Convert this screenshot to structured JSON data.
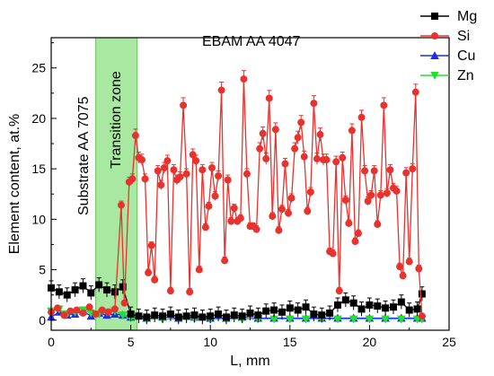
{
  "chart_data": {
    "type": "line",
    "title": "EBAM AA 4047",
    "xlabel": "L, mm",
    "ylabel": "Element content, at.%",
    "xlim": [
      0,
      25
    ],
    "ylim": [
      -1,
      28
    ],
    "xticks": [
      "0",
      "5",
      "10",
      "15",
      "20",
      "25"
    ],
    "yticks": [
      "0",
      "5",
      "10",
      "15",
      "20",
      "25"
    ],
    "grid": false,
    "legend_position": "top-right",
    "annotations": {
      "substrate": "Substrate AA 7075",
      "transition": "Transition zone"
    },
    "transition_zone": {
      "x_start": 2.8,
      "x_end": 5.4,
      "color": "#a8e8a0"
    },
    "series": [
      {
        "name": "Mg",
        "color": "#000000",
        "marker": "square",
        "x": [
          0.0,
          0.5,
          1.0,
          1.5,
          2.0,
          2.5,
          3.0,
          3.5,
          4.0,
          4.5,
          5.0,
          5.5,
          6.0,
          6.5,
          7.0,
          7.5,
          8.0,
          8.5,
          9.0,
          9.5,
          10.0,
          10.5,
          11.0,
          11.5,
          12.0,
          12.5,
          13.0,
          13.5,
          14.0,
          14.5,
          15.0,
          15.5,
          16.0,
          16.5,
          17.0,
          17.5,
          18.0,
          18.5,
          19.0,
          19.5,
          20.0,
          20.5,
          21.0,
          21.5,
          22.0,
          22.5,
          23.0,
          23.3
        ],
        "y": [
          3.2,
          2.8,
          2.5,
          3.0,
          3.4,
          2.7,
          3.5,
          3.0,
          2.8,
          3.3,
          0.6,
          0.4,
          0.3,
          0.5,
          0.4,
          0.6,
          0.3,
          0.4,
          0.5,
          0.3,
          0.4,
          0.6,
          0.3,
          0.5,
          0.4,
          0.7,
          0.5,
          0.9,
          1.0,
          0.8,
          1.2,
          1.0,
          1.3,
          0.6,
          0.5,
          0.7,
          1.5,
          2.0,
          1.7,
          1.1,
          1.5,
          1.4,
          1.2,
          1.3,
          1.8,
          1.0,
          1.1,
          2.6
        ]
      },
      {
        "name": "Si",
        "color": "#e8322e",
        "marker": "circle",
        "x": [
          0.0,
          0.4,
          0.8,
          1.2,
          1.6,
          2.0,
          2.4,
          2.8,
          3.2,
          3.6,
          4.0,
          4.4,
          4.6,
          4.9,
          5.1,
          5.3,
          5.5,
          5.7,
          5.9,
          6.1,
          6.3,
          6.5,
          6.7,
          6.9,
          7.1,
          7.3,
          7.5,
          7.7,
          7.9,
          8.1,
          8.3,
          8.5,
          8.7,
          8.9,
          9.1,
          9.3,
          9.5,
          9.7,
          9.9,
          10.1,
          10.3,
          10.5,
          10.7,
          10.9,
          11.1,
          11.3,
          11.5,
          11.7,
          11.9,
          12.1,
          12.3,
          12.5,
          12.7,
          12.9,
          13.1,
          13.3,
          13.5,
          13.7,
          13.9,
          14.1,
          14.3,
          14.5,
          14.7,
          14.9,
          15.1,
          15.3,
          15.5,
          15.7,
          15.9,
          16.1,
          16.3,
          16.5,
          16.7,
          16.9,
          17.1,
          17.3,
          17.5,
          17.7,
          17.9,
          18.1,
          18.3,
          18.5,
          18.7,
          18.9,
          19.1,
          19.3,
          19.5,
          19.7,
          19.9,
          20.1,
          20.3,
          20.5,
          20.7,
          20.9,
          21.1,
          21.3,
          21.5,
          21.7,
          21.9,
          22.1,
          22.3,
          22.5,
          22.7,
          22.9,
          23.1,
          23.3
        ],
        "y": [
          0.8,
          1.2,
          0.5,
          0.9,
          1.0,
          0.7,
          1.3,
          0.6,
          1.0,
          0.8,
          1.1,
          11.4,
          1.7,
          13.7,
          14.0,
          18.3,
          16.1,
          15.9,
          14.0,
          4.7,
          7.4,
          4.0,
          14.8,
          13.4,
          15.1,
          15.8,
          2.9,
          14.9,
          13.9,
          14.2,
          21.3,
          14.5,
          2.8,
          16.4,
          15.8,
          5.0,
          14.9,
          9.2,
          11.3,
          15.1,
          12.3,
          14.3,
          22.8,
          5.9,
          13.9,
          9.8,
          11.1,
          9.8,
          10.1,
          23.9,
          14.5,
          9.3,
          9.3,
          9.0,
          17.0,
          18.5,
          16.0,
          22.0,
          10.3,
          18.9,
          8.9,
          11.0,
          15.5,
          10.6,
          12.1,
          17.0,
          18.1,
          19.6,
          16.2,
          10.8,
          12.7,
          21.5,
          16.0,
          18.4,
          15.9,
          15.9,
          6.8,
          6.6,
          15.7,
          2.9,
          16.1,
          11.9,
          9.6,
          18.8,
          7.8,
          8.6,
          20.1,
          14.8,
          11.8,
          12.4,
          14.8,
          9.5,
          12.4,
          21.3,
          12.6,
          14.9,
          13.1,
          12.8,
          5.3,
          4.4,
          14.6,
          5.8,
          15.0,
          22.6,
          5.1,
          0.4
        ]
      },
      {
        "name": "Cu",
        "color": "#1f2ee0",
        "marker": "triangle-up",
        "x": [
          0.0,
          0.5,
          1.0,
          1.5,
          2.0,
          2.5,
          3.0,
          3.5,
          4.0,
          4.5,
          5.0,
          6.0,
          7.0,
          8.0,
          9.0,
          10.0,
          11.0,
          12.0,
          13.0,
          14.0,
          15.0,
          16.0,
          17.0,
          18.0,
          19.0,
          20.0,
          21.0,
          22.0,
          23.0,
          23.3
        ],
        "y": [
          0.3,
          0.8,
          0.5,
          0.6,
          0.9,
          0.4,
          0.7,
          0.5,
          0.6,
          0.5,
          0.3,
          0.2,
          0.3,
          0.2,
          0.3,
          0.2,
          0.2,
          0.3,
          0.2,
          0.2,
          0.2,
          0.2,
          0.2,
          0.2,
          0.2,
          0.2,
          0.2,
          0.2,
          0.2,
          0.2
        ]
      },
      {
        "name": "Zn",
        "color": "#22e02e",
        "marker": "triangle-down",
        "x": [
          0.0,
          0.5,
          1.0,
          1.5,
          2.0,
          2.5,
          3.0,
          3.5,
          4.0,
          4.5,
          5.0,
          6.0,
          7.0,
          8.0,
          9.0,
          10.0,
          11.0,
          12.0,
          13.0,
          14.0,
          15.0,
          16.0,
          17.0,
          18.0,
          19.0,
          20.0,
          21.0,
          22.0,
          23.0,
          23.3
        ],
        "y": [
          0.9,
          1.1,
          0.6,
          0.8,
          1.0,
          0.7,
          0.6,
          0.8,
          0.9,
          0.5,
          0.2,
          0.1,
          0.1,
          0.1,
          0.1,
          0.1,
          0.1,
          0.1,
          0.1,
          0.1,
          0.1,
          0.1,
          0.1,
          0.1,
          0.1,
          0.1,
          0.1,
          0.1,
          0.1,
          0.1
        ]
      }
    ]
  }
}
